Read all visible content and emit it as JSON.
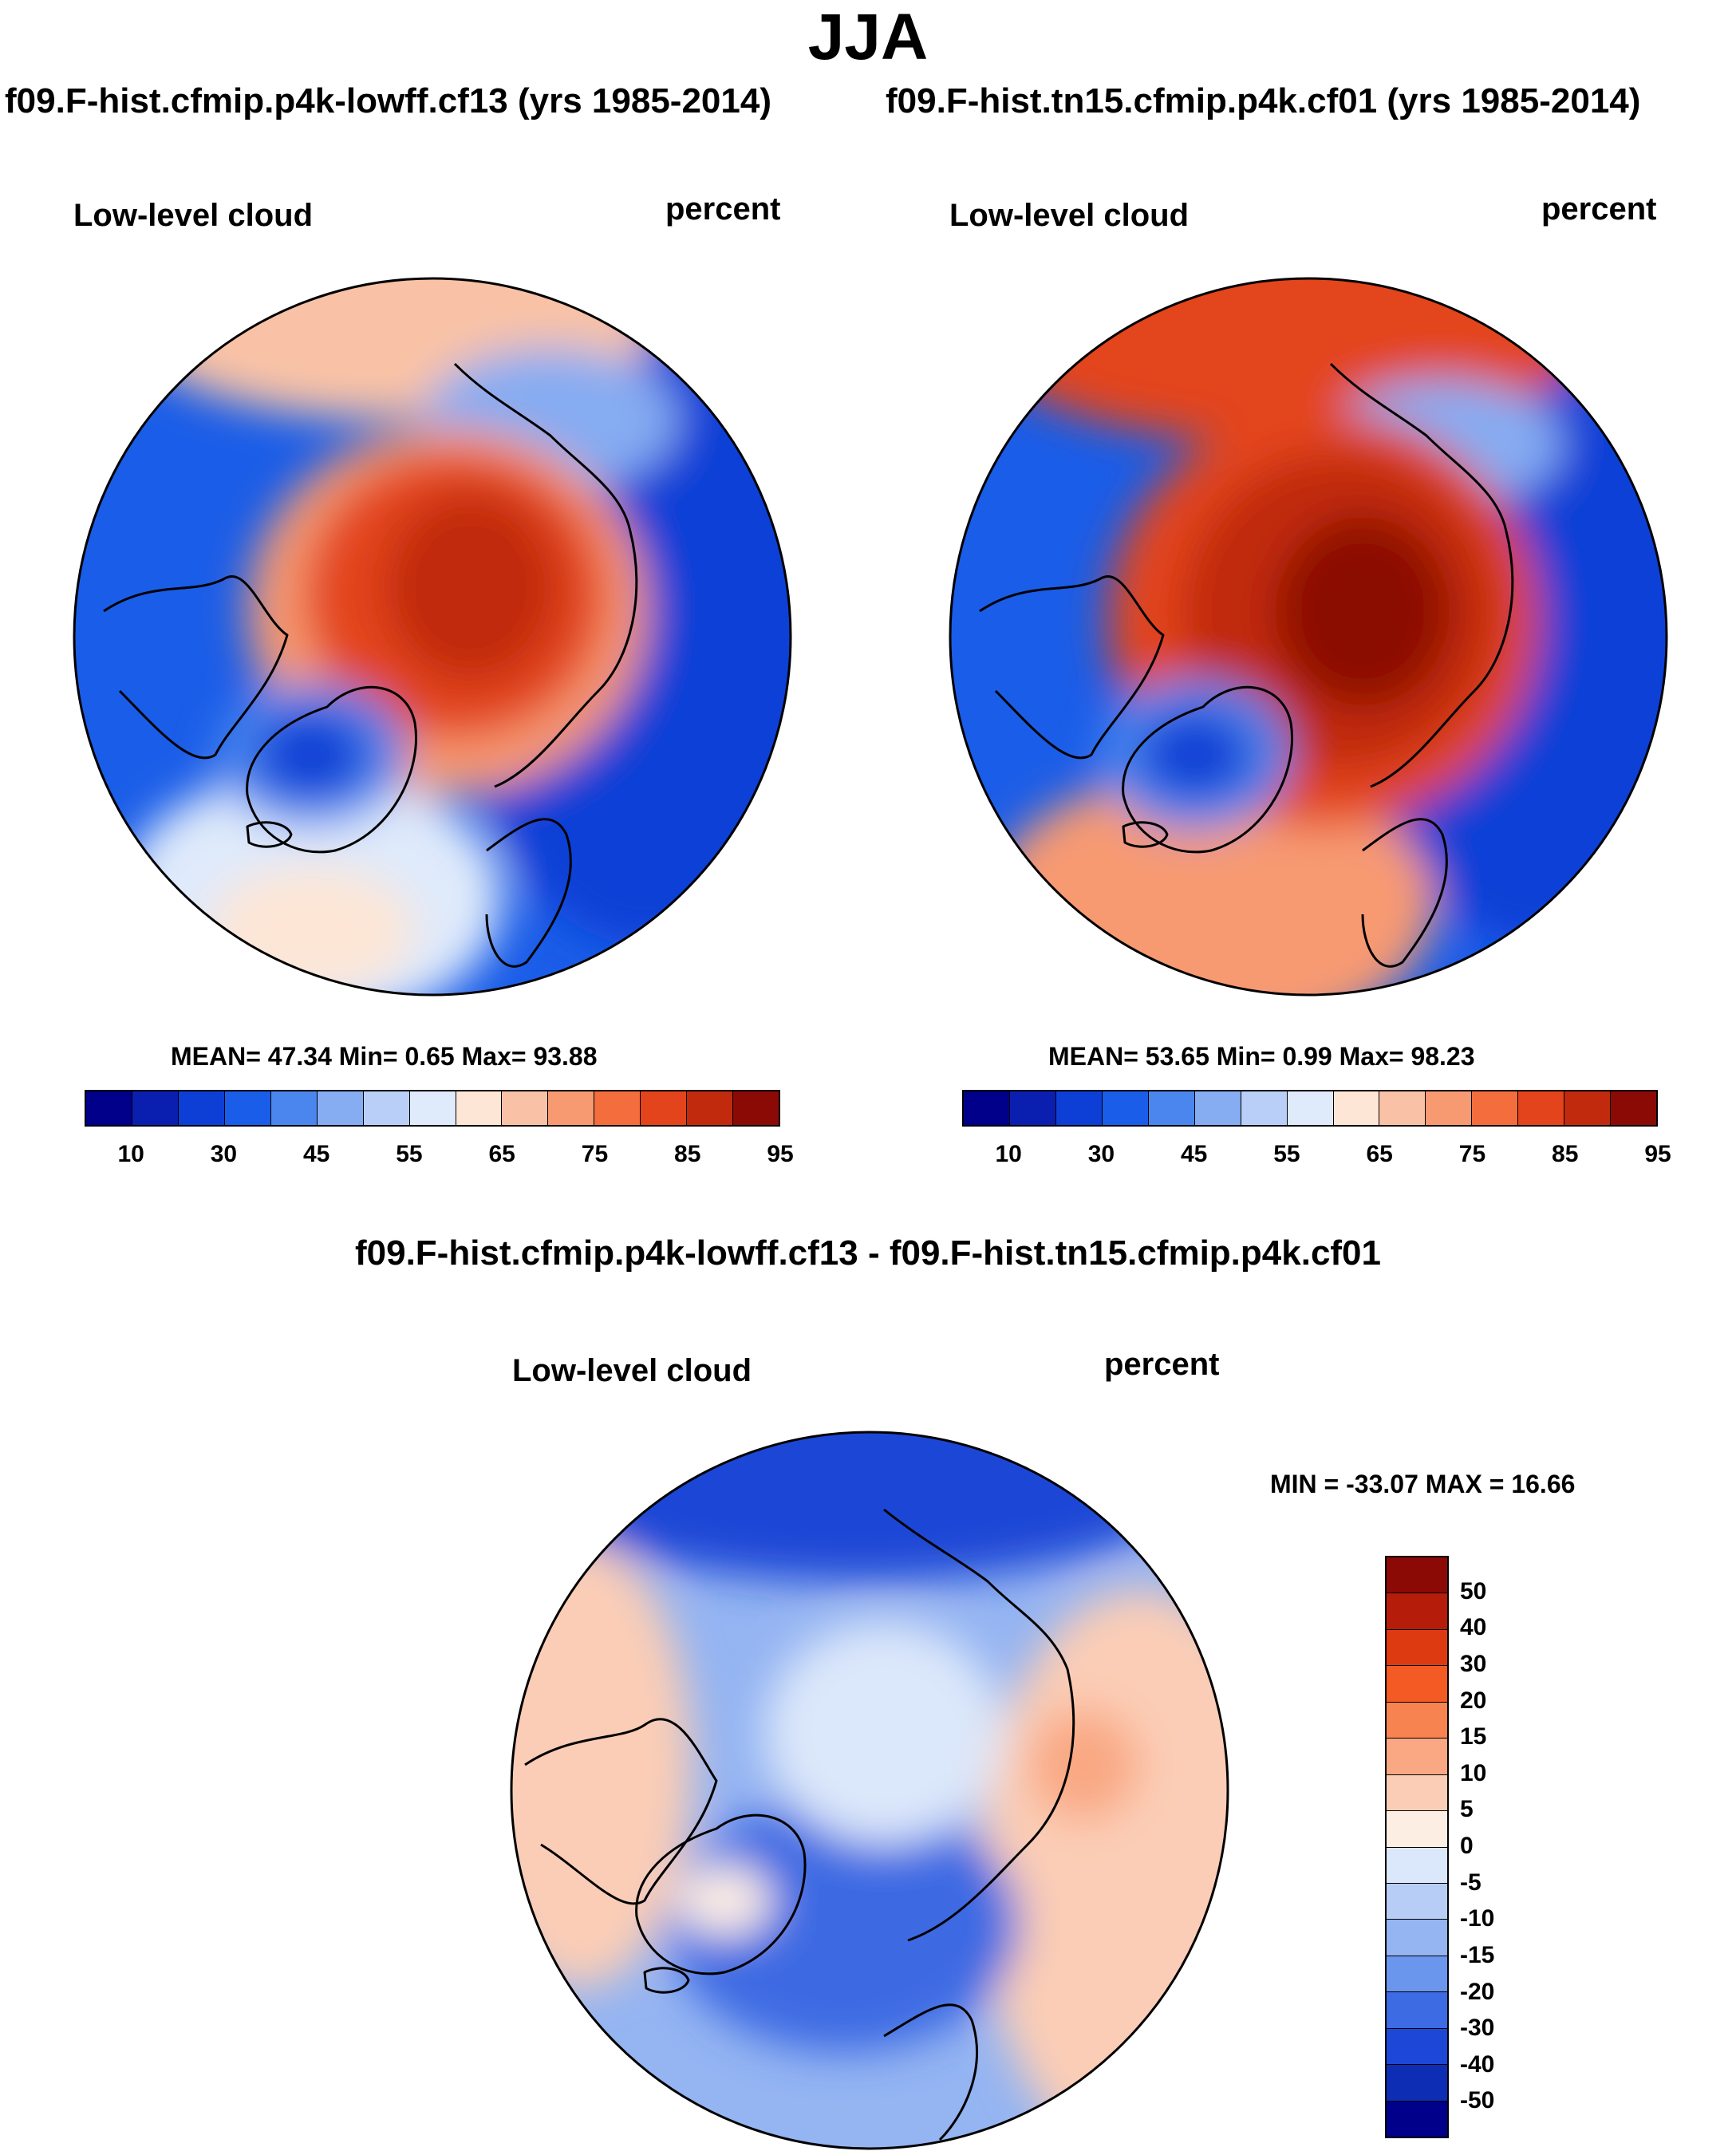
{
  "title": "JJA",
  "panels": [
    {
      "subtitle": "f09.F-hist.cfmip.p4k-lowff.cf13 (yrs 1985-2014)",
      "left_label": "Low-level cloud",
      "right_label": "percent",
      "stats": "MEAN=  47.34  Min=   0.65  Max=  93.88",
      "regions": {
        "arctic": 88,
        "north_pacific": 60,
        "north_atlantic": 55,
        "continents": 32,
        "greenland": 22,
        "east_siberia": 48
      }
    },
    {
      "subtitle": "f09.F-hist.tn15.cfmip.p4k.cf01 (yrs 1985-2014)",
      "left_label": "Low-level cloud",
      "right_label": "percent",
      "stats": "MEAN=  53.65  Min=   0.99  Max=  98.23",
      "regions": {
        "arctic": 96,
        "north_pacific": 85,
        "north_atlantic": 78,
        "continents": 32,
        "greenland": 22,
        "east_siberia": 48
      }
    }
  ],
  "colorbar_abs": {
    "colors": [
      "#00008b",
      "#0a1fb0",
      "#0d3fd6",
      "#1a5de8",
      "#4a86ee",
      "#86acf2",
      "#b9cff7",
      "#dfeafb",
      "#fde6d6",
      "#f9c2a6",
      "#f79a72",
      "#f36d3d",
      "#e3441b",
      "#c12a0d",
      "#8b0a06"
    ],
    "tick_labels": [
      "10",
      "30",
      "45",
      "55",
      "65",
      "75",
      "85",
      "95"
    ]
  },
  "diff": {
    "title": "f09.F-hist.cfmip.p4k-lowff.cf13 - f09.F-hist.tn15.cfmip.p4k.cf01",
    "left_label": "Low-level cloud",
    "right_label": "percent",
    "minmax": "MIN = -33.07 MAX =  16.66",
    "regions": {
      "arctic": -8,
      "pacific_rim": -25,
      "east_pacific": 5,
      "west_ocean": -15,
      "eurasia_east": 6,
      "russia_center": 12,
      "greenland": 2
    }
  },
  "colorbar_diff": {
    "colors": [
      "#8b0a06",
      "#b51d0a",
      "#de3a12",
      "#f35a24",
      "#f78350",
      "#f9a883",
      "#fbcdb6",
      "#fdeee4",
      "#dbe7fa",
      "#b8cdf6",
      "#94b4f2",
      "#6b96ee",
      "#3c6be3",
      "#1d47d6",
      "#0d2eb4",
      "#00008b"
    ],
    "tick_labels": [
      "50",
      "40",
      "30",
      "20",
      "15",
      "10",
      "5",
      "0",
      "-5",
      "-10",
      "-15",
      "-20",
      "-30",
      "-40",
      "-50"
    ]
  }
}
